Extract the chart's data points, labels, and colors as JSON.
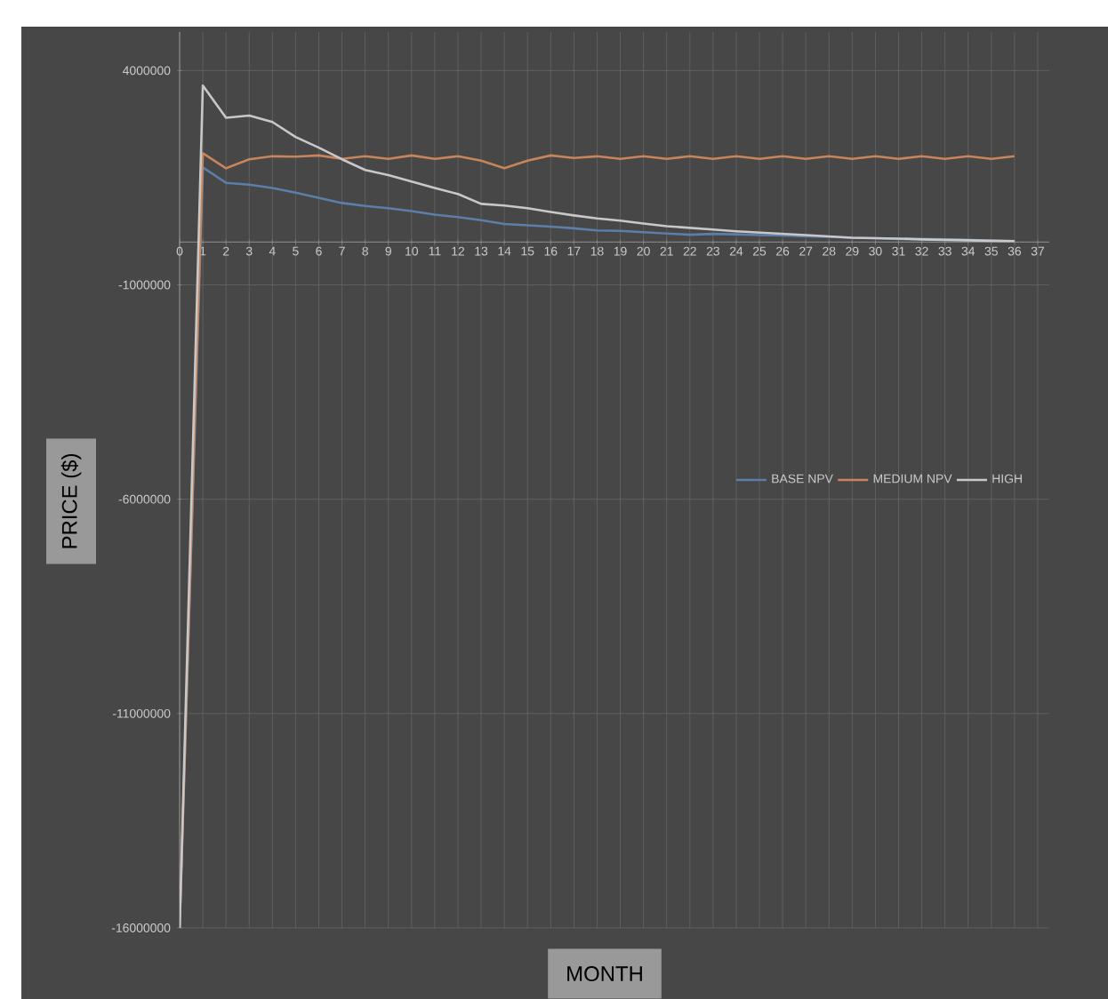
{
  "chart_data": {
    "type": "line",
    "xlabel": "MONTH",
    "ylabel": "PRICE ($)",
    "categories": [
      "0",
      "1",
      "2",
      "3",
      "4",
      "5",
      "6",
      "7",
      "8",
      "9",
      "10",
      "11",
      "12",
      "13",
      "14",
      "15",
      "16",
      "17",
      "18",
      "19",
      "20",
      "21",
      "22",
      "23",
      "24",
      "25",
      "26",
      "27",
      "28",
      "29",
      "30",
      "31",
      "32",
      "33",
      "34",
      "35",
      "36",
      "37"
    ],
    "series": [
      {
        "name": "BASE NPV",
        "color": "#5b7fa8",
        "values": [
          -16000000,
          1740000,
          1380000,
          1340000,
          1260000,
          1150000,
          1030000,
          910000,
          840000,
          790000,
          720000,
          640000,
          580000,
          510000,
          420000,
          390000,
          360000,
          320000,
          270000,
          260000,
          230000,
          200000,
          170000,
          190000,
          180000,
          160000,
          150000,
          130000,
          120000,
          100000,
          90000,
          70000,
          70000,
          60000,
          50000,
          30000,
          20000,
          null
        ]
      },
      {
        "name": "MEDIUM NPV",
        "color": "#c8845a",
        "values": [
          -16000000,
          2070000,
          1720000,
          1930000,
          2000000,
          1990000,
          2020000,
          1940000,
          2000000,
          1940000,
          2020000,
          1940000,
          2000000,
          1900000,
          1720000,
          1900000,
          2020000,
          1960000,
          2000000,
          1940000,
          2000000,
          1940000,
          2000000,
          1940000,
          2000000,
          1940000,
          2000000,
          1940000,
          2000000,
          1940000,
          2000000,
          1940000,
          2000000,
          1940000,
          2000000,
          1940000,
          2000000,
          null
        ]
      },
      {
        "name": "HIGH",
        "color": "#c8c8c8",
        "values": [
          -16000000,
          3650000,
          2900000,
          2950000,
          2800000,
          2450000,
          2200000,
          1930000,
          1680000,
          1560000,
          1410000,
          1260000,
          1120000,
          890000,
          850000,
          790000,
          700000,
          620000,
          550000,
          500000,
          430000,
          370000,
          330000,
          290000,
          250000,
          220000,
          190000,
          160000,
          130000,
          100000,
          90000,
          80000,
          60000,
          50000,
          40000,
          30000,
          20000,
          null
        ]
      }
    ],
    "ylim": [
      -16000000,
      4900000
    ],
    "yticks": [
      -16000000,
      -11000000,
      -6000000,
      -1000000,
      4000000
    ],
    "grid": true,
    "legend": "right",
    "marker": "none",
    "line_style": "solid"
  }
}
